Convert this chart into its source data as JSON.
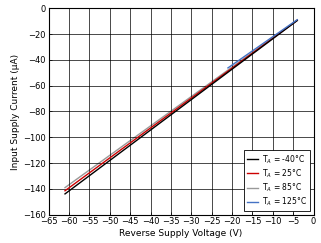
{
  "xlabel": "Reverse Supply Voltage (V)",
  "ylabel": "Input Supply Current (μA)",
  "xlim": [
    -65,
    0
  ],
  "ylim": [
    -160,
    0
  ],
  "xticks": [
    -65,
    -60,
    -55,
    -50,
    -45,
    -40,
    -35,
    -30,
    -25,
    -20,
    -15,
    -10,
    -5,
    0
  ],
  "yticks": [
    0,
    -20,
    -40,
    -60,
    -80,
    -100,
    -120,
    -140,
    -160
  ],
  "lines": [
    {
      "x_start": -61,
      "x_end": -4,
      "slope": 2.36,
      "color": "#000000",
      "lw": 1.0,
      "label": "T$_A$ = -40°C",
      "zorder": 4
    },
    {
      "x_start": -61,
      "x_end": -4,
      "slope": 2.32,
      "color": "#cc0000",
      "lw": 1.0,
      "label": "T$_A$ = 25°C",
      "zorder": 3
    },
    {
      "x_start": -61,
      "x_end": -4,
      "slope": 2.28,
      "color": "#999999",
      "lw": 1.0,
      "label": "T$_A$ = 85°C",
      "zorder": 2
    },
    {
      "x_start": -21,
      "x_end": -4,
      "slope": 2.2,
      "color": "#4472c4",
      "lw": 1.0,
      "label": "T$_A$ = 125°C",
      "zorder": 5
    }
  ],
  "bg_color": "#ffffff",
  "grid_color": "#000000",
  "grid_lw": 0.5,
  "font_size": 6.5,
  "tick_font_size": 6.0,
  "legend_fontsize": 5.5,
  "legend_loc": "lower right"
}
